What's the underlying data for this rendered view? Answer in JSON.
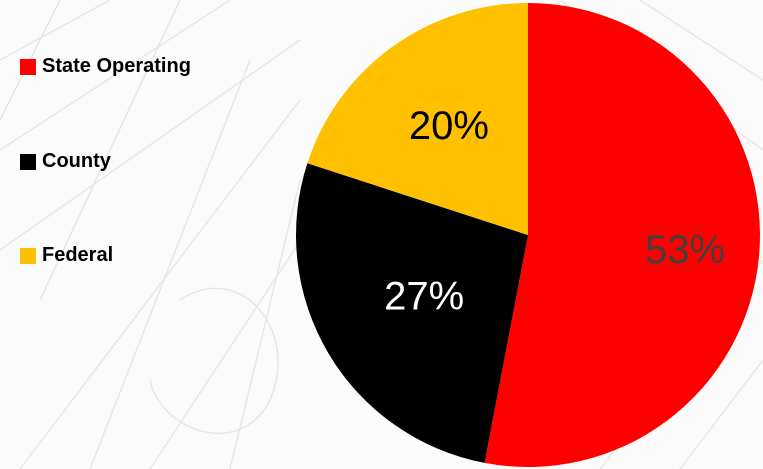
{
  "chart_data": {
    "type": "pie",
    "title": "",
    "categories": [
      "State Operating",
      "County",
      "Federal"
    ],
    "values": [
      53,
      27,
      20
    ],
    "data_labels": [
      "53%",
      "27%",
      "20%"
    ],
    "colors": [
      "#ff0000",
      "#000000",
      "#ffc000"
    ],
    "label_colors": [
      "#404040",
      "#ffffff",
      "#000000"
    ],
    "legend_position": "left"
  }
}
